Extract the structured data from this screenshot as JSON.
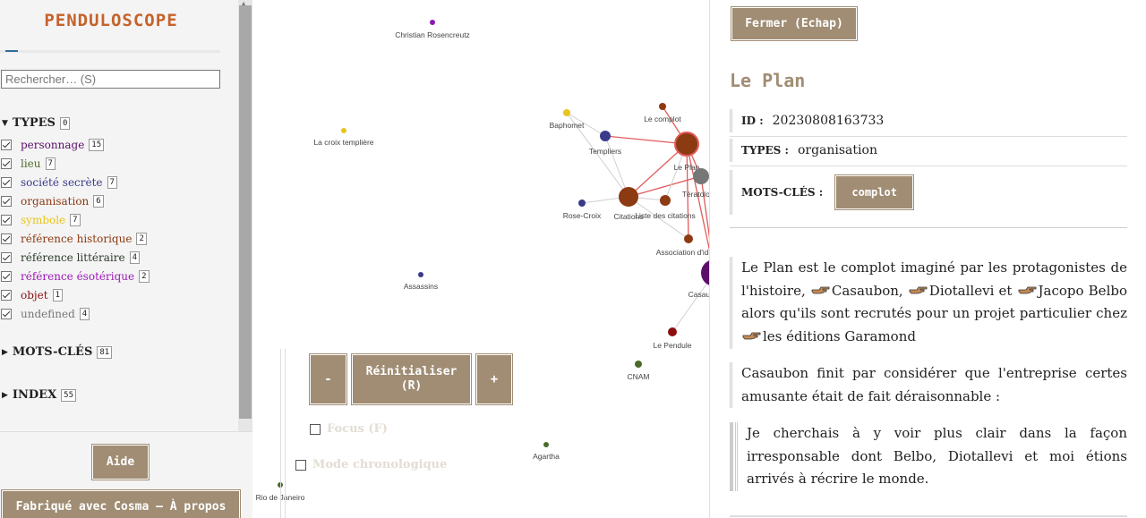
{
  "app": {
    "title": "PENDULOSCOPE"
  },
  "search": {
    "placeholder": "Rechercher… (S)"
  },
  "types": {
    "label": "TYPES",
    "count": "0",
    "items": [
      {
        "label": "personnage",
        "count": "15",
        "color": "#5b0f6b"
      },
      {
        "label": "lieu",
        "count": "7",
        "color": "#4b6b2a"
      },
      {
        "label": "société secrète",
        "count": "7",
        "color": "#3a3a8c"
      },
      {
        "label": "organisation",
        "count": "6",
        "color": "#8c3a12"
      },
      {
        "label": "symbole",
        "count": "7",
        "color": "#e8c51a"
      },
      {
        "label": "référence historique",
        "count": "2",
        "color": "#8c3a12"
      },
      {
        "label": "référence littéraire",
        "count": "4",
        "color": "#2a3a2a"
      },
      {
        "label": "référence ésotérique",
        "count": "2",
        "color": "#9a1ab5"
      },
      {
        "label": "objet",
        "count": "1",
        "color": "#8a0f0f"
      },
      {
        "label": "undefined",
        "count": "4",
        "color": "#777777"
      }
    ]
  },
  "keywords": {
    "label": "MOTS-CLÉS",
    "count": "81"
  },
  "index": {
    "label": "INDEX",
    "count": "55"
  },
  "footer": {
    "help": "Aide",
    "about": "Fabriqué avec Cosma — À propos"
  },
  "graph": {
    "nodes": [
      {
        "label": "Christian Rosencreutz",
        "color": "#8a1ab5"
      },
      {
        "label": "La croix templière",
        "color": "#e8c51a"
      },
      {
        "label": "Baphomet",
        "color": "#e8c51a"
      },
      {
        "label": "Le complot",
        "color": "#8c3a12"
      },
      {
        "label": "Templiers",
        "color": "#3a3a8c"
      },
      {
        "label": "Le Plan",
        "color": "#8c3a12"
      },
      {
        "label": "Tératologie",
        "color": "#777777"
      },
      {
        "label": "Citations",
        "color": "#8c3a12"
      },
      {
        "label": "Liste des citations",
        "color": "#8c3a12"
      },
      {
        "label": "Rose-Croix",
        "color": "#3a3a8c"
      },
      {
        "label": "Association d'idées",
        "color": "#8c3a12"
      },
      {
        "label": "Casaubon",
        "color": "#5b0f6b"
      },
      {
        "label": "Assassins",
        "color": "#3a3a8c"
      },
      {
        "label": "Le Pendule",
        "color": "#8a0f0f"
      },
      {
        "label": "CNAM",
        "color": "#4b6b2a"
      },
      {
        "label": "Agartha",
        "color": "#4b6b2a"
      },
      {
        "label": "Rio de Janeiro",
        "color": "#4b6b2a"
      }
    ]
  },
  "controls": {
    "zoom_out": "-",
    "reset": "Réinitialiser (R)",
    "zoom_in": "+",
    "focus": "Focus (F)",
    "chrono": "Mode chronologique"
  },
  "record": {
    "close": "Fermer (Echap)",
    "title": "Le Plan",
    "id_key": "ID :",
    "id_value": "20230808163733",
    "types_key": "TYPES :",
    "types_value": "organisation",
    "keywords_key": "MOTS-CLÉS :",
    "keyword": "complot",
    "p1": {
      "a": "Le Plan est le complot imaginé par les protagonistes de l'histoire,",
      "l1": "Casaubon,",
      "l2": "Diotallevi",
      "b": "et",
      "l3": "Jacopo Belbo",
      "c": "alors qu'ils sont recrutés pour un projet particulier chez",
      "l4": "les éditions Garamond"
    },
    "p2": "Casaubon finit par considérer que l'entreprise certes amusante était de fait déraisonnable :",
    "quote": "Je cherchais à y voir plus clair dans la façon irresponsable dont Belbo, Diotallevi et moi étions arrivés à récrire le monde."
  }
}
